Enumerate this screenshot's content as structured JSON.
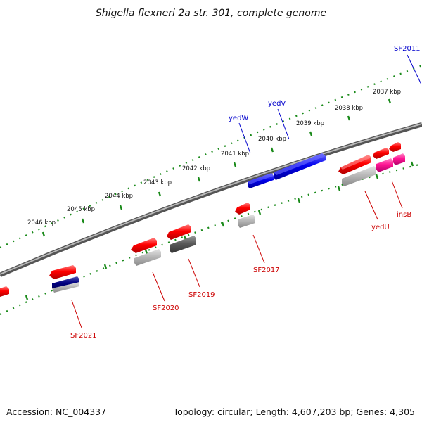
{
  "title": "Shigella flexneri 2a str. 301, complete genome",
  "footer": {
    "accession": "Accession: NC_004337",
    "stats": "Topology: circular; Length: 4,607,203 bp; Genes: 4,305"
  },
  "ticks": [
    "2037 kbp",
    "2038 kbp",
    "2039 kbp",
    "2040 kbp",
    "2041 kbp",
    "2042 kbp",
    "2043 kbp",
    "2044 kbp",
    "2045 kbp",
    "2046 kbp"
  ],
  "labels": {
    "SF2011": "SF2011",
    "yedV": "yedV",
    "yedW": "yedW",
    "insB": "insB",
    "yedU": "yedU",
    "SF2017": "SF2017",
    "SF2019": "SF2019",
    "SF2020": "SF2020",
    "SF2021": "SF2021"
  },
  "colors": {
    "forward_gene": "#ff0000",
    "reverse_gene": "#0000ee",
    "pink_gene": "#ff1493",
    "gray_gene": "#a8a8a8",
    "dark_gray_gene": "#555555",
    "navy_gene": "#000080",
    "backbone": "#777777",
    "ruler": "#1a8a1a",
    "label_blue": "#0000cc",
    "label_red": "#cc0000"
  }
}
